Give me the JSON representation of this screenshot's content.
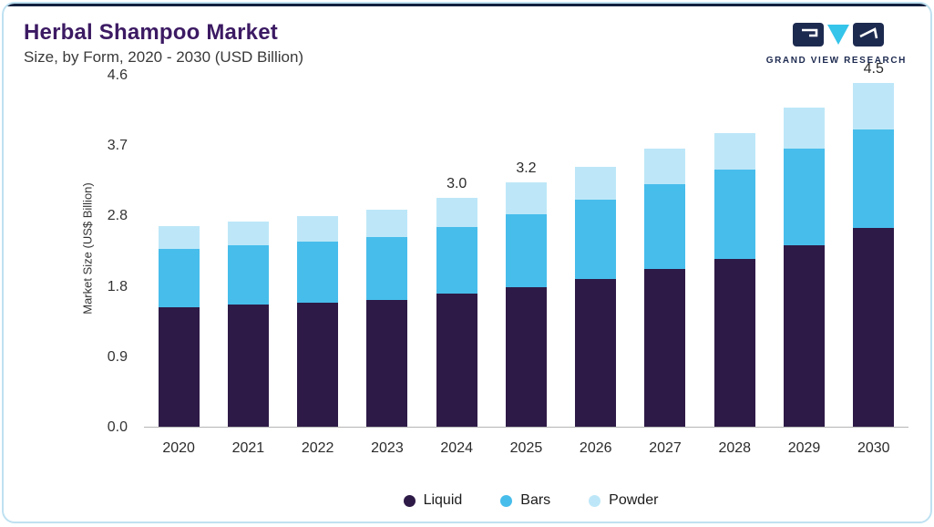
{
  "header": {
    "title": "Herbal Shampoo Market",
    "subtitle": "Size, by Form, 2020 - 2030 (USD Billion)",
    "logo_text": "GRAND VIEW RESEARCH"
  },
  "colors": {
    "liquid": "#2E1A47",
    "bars": "#47BDEB",
    "powder": "#BDE7F8",
    "accent_navy": "#1d2a50",
    "accent_cyan": "#35C4EA",
    "title_purple": "#3c1a63",
    "card_border": "#bfe1f1"
  },
  "chart_data": {
    "type": "bar",
    "stacked": true,
    "title": "Herbal Shampoo Market Size, by Form, 2020 - 2030 (USD Billion)",
    "categories": [
      "2020",
      "2021",
      "2022",
      "2023",
      "2024",
      "2025",
      "2026",
      "2027",
      "2028",
      "2029",
      "2030"
    ],
    "series": [
      {
        "name": "Liquid",
        "color": "#2E1A47",
        "values": [
          1.57,
          1.6,
          1.63,
          1.66,
          1.74,
          1.83,
          1.94,
          2.07,
          2.2,
          2.38,
          2.6
        ]
      },
      {
        "name": "Bars",
        "color": "#47BDEB",
        "values": [
          0.76,
          0.78,
          0.8,
          0.83,
          0.88,
          0.96,
          1.03,
          1.11,
          1.17,
          1.26,
          1.3
        ]
      },
      {
        "name": "Powder",
        "color": "#BDE7F8",
        "values": [
          0.3,
          0.31,
          0.33,
          0.35,
          0.38,
          0.41,
          0.44,
          0.47,
          0.48,
          0.54,
          0.6
        ]
      }
    ],
    "totals": [
      2.63,
      2.69,
      2.76,
      2.84,
      3.0,
      3.2,
      3.41,
      3.65,
      3.85,
      4.18,
      4.5
    ],
    "total_labels": [
      "",
      "",
      "",
      "",
      "3.0",
      "3.2",
      "",
      "",
      "",
      "",
      "4.5"
    ],
    "xlabel": "",
    "ylabel": "Market Size (US$ Billion)",
    "ylim": [
      0,
      4.6
    ],
    "ytick_labels": [
      "0.0",
      "0.9",
      "1.8",
      "2.8",
      "3.7",
      "4.6"
    ],
    "grid": false,
    "legend_position": "bottom"
  }
}
